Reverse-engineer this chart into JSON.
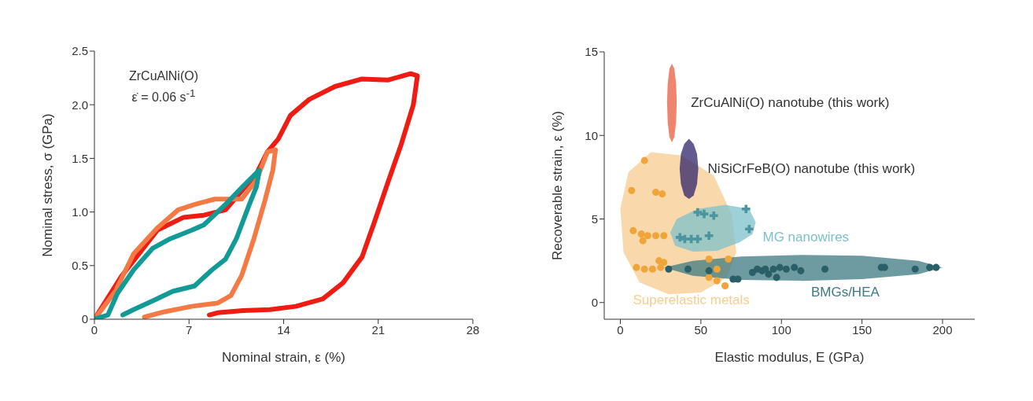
{
  "chart_data": [
    {
      "type": "line",
      "xlabel": "Nominal strain, ε (%)",
      "ylabel": "Nominal stress, σ (GPa)",
      "annotations": [
        "ZrCuAlNi(O)",
        "ε̇ = 0.06 s$^{-1}$"
      ],
      "xlim": [
        0,
        28
      ],
      "xticks": [
        0,
        7,
        14,
        21,
        28
      ],
      "ylim": [
        0,
        2.5
      ],
      "yticks": [
        0,
        0.5,
        {
          "value": 1,
          "label": "1.0"
        },
        1.5,
        {
          "value": 2,
          "label": "2.0"
        },
        2.5
      ],
      "line_style": "solid",
      "series": [
        {
          "color": "#ee1c13",
          "x": [
            0,
            2,
            4.65,
            6.6,
            8.1,
            9.7,
            11.2,
            12,
            12.8,
            13.6,
            14.5,
            15.9,
            17.8,
            19.8,
            21.7,
            23.4,
            23.9,
            23.6,
            22.7,
            21.7,
            20.7,
            19.8,
            18.4,
            16.9,
            14.9,
            13,
            11,
            9.1,
            8.5
          ],
          "values": [
            0,
            0.4,
            0.83,
            0.95,
            0.97,
            1.02,
            1.24,
            1.36,
            1.56,
            1.68,
            1.9,
            2.05,
            2.17,
            2.24,
            2.23,
            2.29,
            2.27,
            2,
            1.63,
            1.27,
            0.9,
            0.58,
            0.34,
            0.19,
            0.12,
            0.09,
            0.08,
            0.06,
            0.04
          ]
        },
        {
          "color": "#f47a45",
          "x": [
            0,
            1.55,
            2.9,
            4.65,
            6.2,
            7.4,
            8.9,
            10.9,
            12,
            12.8,
            13.4,
            13.2,
            12.6,
            11.8,
            10.9,
            10.1,
            9.1,
            7.2,
            5.2,
            3.7
          ],
          "values": [
            0,
            0.26,
            0.61,
            0.85,
            1.02,
            1.07,
            1.12,
            1.12,
            1.3,
            1.56,
            1.58,
            1.39,
            1.1,
            0.75,
            0.41,
            0.22,
            0.15,
            0.12,
            0.07,
            0.02
          ]
        },
        {
          "color": "#119a96",
          "x": [
            0,
            1,
            1.7,
            2.9,
            4.3,
            5.6,
            7.2,
            8.1,
            9.7,
            11,
            12.2,
            12,
            11.4,
            10.5,
            9.7,
            8.7,
            7.4,
            5.8,
            4.3,
            2.9,
            2.1
          ],
          "values": [
            0,
            0.04,
            0.24,
            0.46,
            0.66,
            0.75,
            0.83,
            0.88,
            1.07,
            1.24,
            1.39,
            1.24,
            1.05,
            0.75,
            0.56,
            0.46,
            0.31,
            0.26,
            0.17,
            0.09,
            0.04
          ]
        }
      ]
    },
    {
      "type": "scatter",
      "xlabel": "Elastic modulus, E (GPa)",
      "ylabel": "Recoverable strain, ε (%)",
      "xlim": [
        -10,
        220
      ],
      "xticks": [
        0,
        50,
        100,
        150,
        200
      ],
      "ylim": [
        -1,
        15
      ],
      "yticks": [
        0,
        5,
        10,
        15
      ],
      "series": [
        {
          "type": "area",
          "name": "Superelastic metals",
          "color": "#f7cc8f",
          "x": [
            72,
            69,
            58,
            38,
            19,
            5,
            0,
            2,
            12,
            30,
            50,
            66
          ],
          "values": [
            3,
            5.3,
            7.6,
            8.8,
            9,
            7.8,
            5.6,
            3,
            1.2,
            0.5,
            0.6,
            1.5
          ]
        },
        {
          "type": "area",
          "name": "MG nanowires",
          "color": "#7cc0c9",
          "x": [
            84,
            80,
            65,
            48,
            35,
            31,
            34,
            45,
            60,
            74,
            82
          ],
          "values": [
            4.8,
            5.6,
            5.85,
            5.6,
            5,
            4.2,
            3.4,
            3.05,
            3.1,
            3.6,
            4.1
          ]
        },
        {
          "type": "area",
          "name": "BMGs/HEA",
          "color": "#3d7a82",
          "x": [
            200,
            185,
            150,
            113,
            75,
            45,
            27,
            45,
            75,
            113,
            150,
            185
          ],
          "values": [
            2.1,
            2.5,
            2.8,
            2.85,
            2.75,
            2.5,
            2.1,
            1.6,
            1.35,
            1.3,
            1.4,
            1.7
          ]
        },
        {
          "type": "area",
          "name": "ZrCuAlNi(O) nanotube (this work)",
          "color": "#ea5b3f",
          "x": [
            35,
            34.6,
            33.5,
            32,
            30.5,
            29.4,
            29,
            29.4,
            30.5,
            32,
            33.5,
            34.6
          ],
          "values": [
            12,
            13.1,
            14,
            14.3,
            14,
            13.1,
            12,
            10.8,
            9.9,
            9.6,
            9.9,
            10.8
          ]
        },
        {
          "type": "area",
          "name": "NiSiCrFeB(O) nanotube (this work)",
          "color": "#2f2468",
          "x": [
            48.4,
            47.6,
            45.5,
            42.6,
            39.7,
            37.6,
            36.8,
            37.6,
            39.7,
            42.6,
            45.5,
            47.6
          ],
          "values": [
            8,
            8.9,
            9.5,
            9.8,
            9.5,
            8.9,
            8,
            7.1,
            6.4,
            6.2,
            6.4,
            7.1
          ]
        },
        {
          "color": "#f0a53a",
          "marker": "circle",
          "x": [
            15,
            7,
            22,
            26,
            8,
            13,
            17,
            22,
            27,
            14,
            24,
            27,
            10,
            15,
            20,
            25,
            55,
            60,
            65,
            55,
            67,
            60
          ],
          "values": [
            8.5,
            6.7,
            6.6,
            6.5,
            4.3,
            4.1,
            4,
            4,
            4,
            3.7,
            2.5,
            2.4,
            2.1,
            2,
            2,
            2.1,
            1.5,
            1.3,
            1,
            2.6,
            2.6,
            2
          ]
        },
        {
          "color": "#4c95a0",
          "marker": "cross",
          "x": [
            48,
            52,
            58,
            78,
            80,
            37,
            40,
            44,
            48,
            55
          ],
          "values": [
            5.4,
            5.3,
            5.2,
            5.6,
            4.4,
            3.9,
            3.8,
            3.8,
            3.8,
            4
          ]
        },
        {
          "color": "#2b5f68",
          "marker": "circle",
          "x": [
            30,
            42,
            55,
            70,
            73,
            82,
            85,
            88,
            90,
            92,
            95,
            97,
            99,
            103,
            108,
            112,
            127,
            162,
            164,
            183,
            192,
            196
          ],
          "values": [
            2,
            2,
            1.9,
            1.4,
            1.4,
            1.8,
            2,
            1.9,
            2,
            1.7,
            2,
            1.5,
            2.1,
            2,
            2.1,
            1.9,
            2,
            2.1,
            2.1,
            2,
            2.1,
            2.1
          ]
        }
      ]
    }
  ]
}
